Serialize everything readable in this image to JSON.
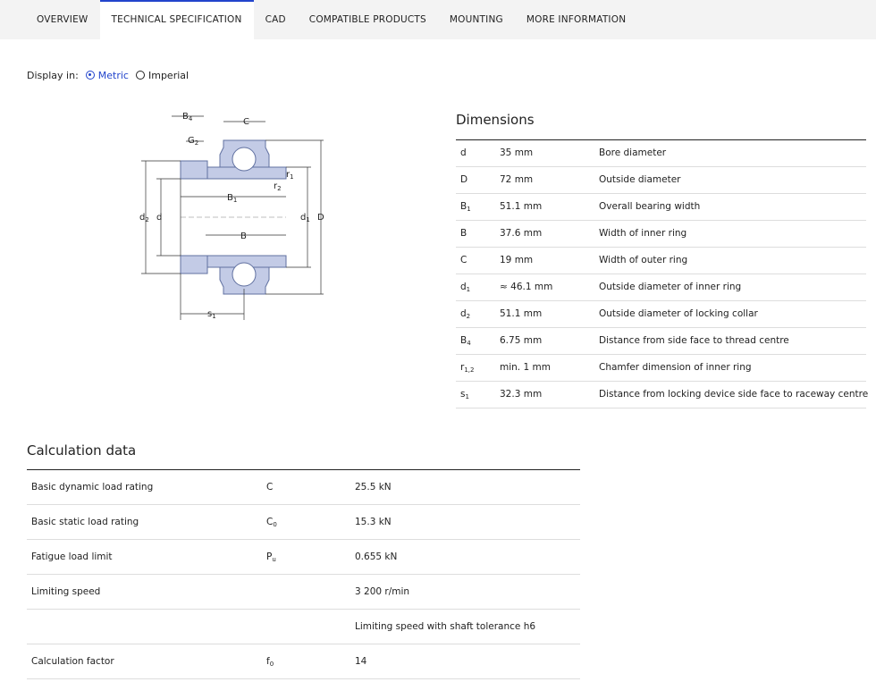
{
  "tabs": [
    "OVERVIEW",
    "TECHNICAL SPECIFICATION",
    "CAD",
    "COMPATIBLE PRODUCTS",
    "MOUNTING",
    "MORE INFORMATION"
  ],
  "display": {
    "label": "Display in:",
    "options": [
      "Metric",
      "Imperial"
    ]
  },
  "diagram": {
    "labels": [
      {
        "s": "B",
        "sub": "4"
      },
      {
        "s": "G",
        "sub": "2"
      },
      {
        "s": "C"
      },
      {
        "s": "r",
        "sub": "1"
      },
      {
        "s": "r",
        "sub": "2"
      },
      {
        "s": "B",
        "sub": "1"
      },
      {
        "s": "B"
      },
      {
        "s": "d",
        "sub": "2"
      },
      {
        "s": "d"
      },
      {
        "s": "d",
        "sub": "1"
      },
      {
        "s": "D"
      },
      {
        "s": "s",
        "sub": "1"
      }
    ]
  },
  "dimensions": {
    "title": "Dimensions",
    "rows": [
      [
        {
          "s": "d"
        },
        "35 mm",
        "Bore diameter"
      ],
      [
        {
          "s": "D"
        },
        "72 mm",
        "Outside diameter"
      ],
      [
        {
          "s": "B",
          "sub": "1"
        },
        "51.1 mm",
        "Overall bearing width"
      ],
      [
        {
          "s": "B"
        },
        "37.6 mm",
        "Width of inner ring"
      ],
      [
        {
          "s": "C"
        },
        "19 mm",
        "Width of outer ring"
      ],
      [
        {
          "s": "d",
          "sub": "1"
        },
        "≈ 46.1 mm",
        "Outside diameter of inner ring"
      ],
      [
        {
          "s": "d",
          "sub": "2"
        },
        "51.1 mm",
        "Outside diameter of locking collar"
      ],
      [
        {
          "s": "B",
          "sub": "4"
        },
        "6.75 mm",
        "Distance from side face to thread centre"
      ],
      [
        {
          "s": "r",
          "sub": "1,2"
        },
        "min. 1 mm",
        "Chamfer dimension of inner ring"
      ],
      [
        {
          "s": "s",
          "sub": "1"
        },
        "32.3 mm",
        "Distance from locking device side face to raceway centre"
      ]
    ]
  },
  "calculation": {
    "title": "Calculation data",
    "rows": [
      [
        "Basic dynamic load rating",
        {
          "s": "C"
        },
        "25.5 kN"
      ],
      [
        "Basic static load rating",
        {
          "s": "C",
          "sub": "0"
        },
        "15.3 kN"
      ],
      [
        "Fatigue load limit",
        {
          "s": "P",
          "sub": "u"
        },
        "0.655 kN"
      ],
      [
        "Limiting speed",
        null,
        "3 200 r/min"
      ],
      [
        null,
        null,
        "Limiting speed with shaft tolerance h6"
      ],
      [
        "Calculation factor",
        {
          "s": "f",
          "sub": "0"
        },
        "14"
      ]
    ]
  }
}
